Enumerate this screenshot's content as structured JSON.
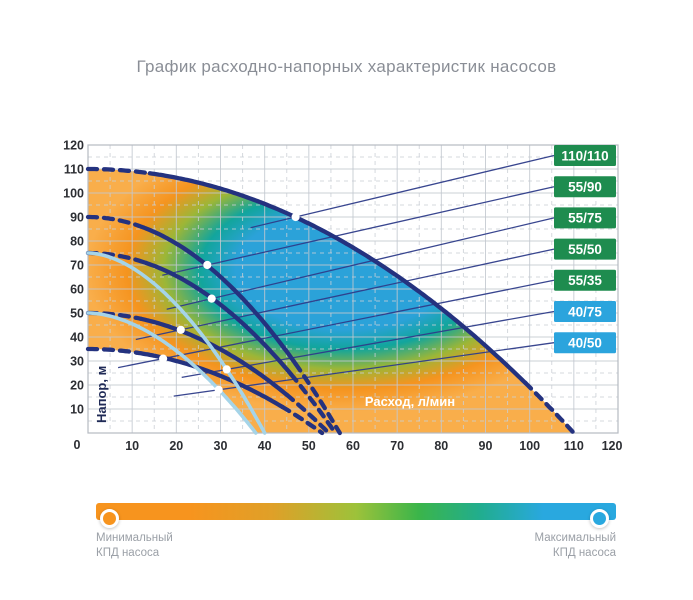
{
  "page": {
    "title": "График расходно-напорных характеристик насосов"
  },
  "chart_data": {
    "type": "line",
    "title": "График расходно-напорных характеристик насосов",
    "xlabel": "Расход, л/мин",
    "ylabel": "Напор, м",
    "xlim": [
      0,
      120
    ],
    "ylim": [
      0,
      120
    ],
    "x_ticks": [
      0,
      10,
      20,
      30,
      40,
      50,
      60,
      70,
      80,
      90,
      100,
      110,
      120
    ],
    "y_ticks": [
      0,
      10,
      20,
      30,
      40,
      50,
      60,
      70,
      80,
      90,
      100,
      110,
      120
    ],
    "grid": {
      "major_step": 10,
      "minor_step": 5,
      "minor_style": "dashed",
      "major_color": "#C3C8CF",
      "minor_color": "#CBD0D6"
    },
    "legend_position": "right-badges",
    "axis_tick_color": "#2C2E33",
    "curve_color_main": "#24327F",
    "curve_color_light": "#A5D4E8",
    "connector_color": "#2F3D8A",
    "series": [
      {
        "label": "110/110",
        "badge_color": "#1E8C4F",
        "line_color": "#24327F",
        "line_width": 4.3,
        "max_head_m": 110,
        "max_flow_lmin": 110,
        "curve_exponent": 2,
        "dash_head_until_flow": 14,
        "dash_tail_from_flow": 99,
        "best_efficiency_point": {
          "flow": 47,
          "head": 90
        }
      },
      {
        "label": "55/90",
        "badge_color": "#1E8C4F",
        "line_color": "#24327F",
        "line_width": 4.3,
        "max_head_m": 90,
        "max_flow_lmin": 57,
        "curve_exponent": 2,
        "dash_head_until_flow": 13,
        "dash_tail_from_flow": 47,
        "best_efficiency_point": {
          "flow": 27,
          "head": 70
        }
      },
      {
        "label": "55/75",
        "badge_color": "#1E8C4F",
        "line_color": "#24327F",
        "line_width": 4.3,
        "max_head_m": 75,
        "max_flow_lmin": 56,
        "curve_exponent": 2,
        "dash_head_until_flow": 13,
        "dash_tail_from_flow": 46,
        "best_efficiency_point": {
          "flow": 28,
          "head": 56
        }
      },
      {
        "label": "55/50",
        "badge_color": "#1E8C4F",
        "line_color": "#24327F",
        "line_width": 4.3,
        "max_head_m": 50,
        "max_flow_lmin": 54.5,
        "curve_exponent": 2,
        "dash_head_until_flow": 12,
        "dash_tail_from_flow": 45,
        "best_efficiency_point": {
          "flow": 21,
          "head": 43
        }
      },
      {
        "label": "55/35",
        "badge_color": "#1E8C4F",
        "line_color": "#24327F",
        "line_width": 4.3,
        "max_head_m": 35,
        "max_flow_lmin": 53,
        "curve_exponent": 2,
        "dash_head_until_flow": 11,
        "dash_tail_from_flow": 44,
        "best_efficiency_point": {
          "flow": 17,
          "head": 31
        }
      },
      {
        "label": "40/75",
        "badge_color": "#2BA4DD",
        "line_color": "#A5D4E8",
        "line_width": 3.6,
        "max_head_m": 75,
        "max_flow_lmin": 40,
        "curve_exponent": 1.8,
        "dash_head_until_flow": 0,
        "dash_tail_from_flow": 40,
        "best_efficiency_point": {
          "flow": 31.4,
          "head": 26.5
        }
      },
      {
        "label": "40/50",
        "badge_color": "#2BA4DD",
        "line_color": "#A5D4E8",
        "line_width": 3.6,
        "max_head_m": 50,
        "max_flow_lmin": 38,
        "curve_exponent": 1.8,
        "dash_head_until_flow": 0,
        "dash_tail_from_flow": 38,
        "best_efficiency_point": {
          "flow": 29.6,
          "head": 18
        }
      }
    ],
    "fill_gradient": {
      "type": "radial",
      "center_flow": 58,
      "center_head": 68,
      "stops": [
        {
          "offset": 0,
          "color": "#2BA2D9"
        },
        {
          "offset": 0.42,
          "color": "#2BA2D9"
        },
        {
          "offset": 0.56,
          "color": "#12A59C"
        },
        {
          "offset": 0.7,
          "color": "#9CB637"
        },
        {
          "offset": 0.84,
          "color": "#F5941F"
        },
        {
          "offset": 1,
          "color": "#F9AE4B"
        }
      ]
    }
  },
  "legend": {
    "min_label": [
      "Минимальный",
      "КПД насоса"
    ],
    "max_label": [
      "Максимальный",
      "КПД насоса"
    ],
    "bar_gradient": [
      "#F7941E",
      "#DFA028",
      "#9DC23A",
      "#3BB54A",
      "#21AD8F",
      "#29A8DF"
    ],
    "min_dot_color": "#F7941E",
    "max_dot_color": "#29A8DF"
  }
}
